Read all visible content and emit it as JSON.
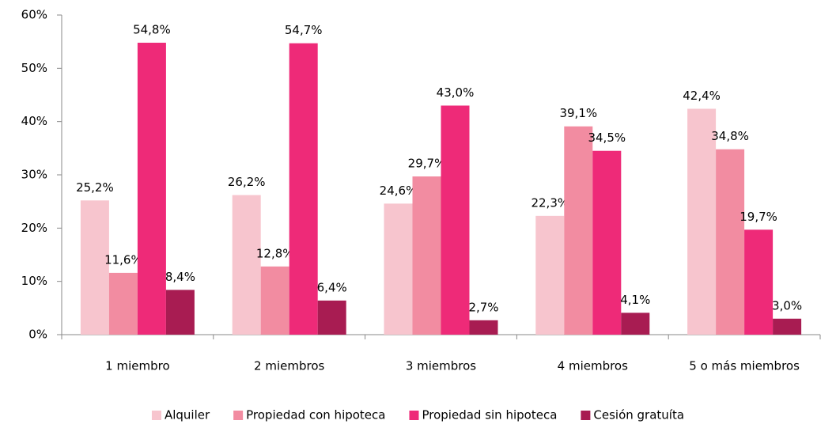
{
  "chart_data": {
    "type": "bar",
    "categories": [
      "1 miembro",
      "2 miembros",
      "3 miembros",
      "4 miembros",
      "5 o más miembros"
    ],
    "series": [
      {
        "name": "Alquiler",
        "color": "#f7c5ce",
        "values": [
          25.2,
          26.2,
          24.6,
          22.3,
          42.4
        ],
        "value_labels": [
          "25,2%",
          "26,2%",
          "24,6%",
          "22,3%",
          "42,4%"
        ]
      },
      {
        "name": "Propiedad con hipoteca",
        "color": "#f28ca1",
        "values": [
          11.6,
          12.8,
          29.7,
          39.1,
          34.8
        ],
        "value_labels": [
          "11,6%",
          "12,8%",
          "29,7%",
          "39,1%",
          "34,8%"
        ]
      },
      {
        "name": "Propiedad sin hipoteca",
        "color": "#ee2a78",
        "values": [
          54.8,
          54.7,
          43.0,
          34.5,
          19.7
        ],
        "value_labels": [
          "54,8%",
          "54,7%",
          "43,0%",
          "34,5%",
          "19,7%"
        ]
      },
      {
        "name": "Cesión gratuíta",
        "color": "#a81c52",
        "values": [
          8.4,
          6.4,
          2.7,
          4.1,
          3.0
        ],
        "value_labels": [
          "8,4%",
          "6,4%",
          "2,7%",
          "4,1%",
          "3,0%"
        ]
      }
    ],
    "ylim": [
      0,
      60
    ],
    "yticks": [
      {
        "value": 0,
        "label": "0%"
      },
      {
        "value": 10,
        "label": "10%"
      },
      {
        "value": 20,
        "label": "20%"
      },
      {
        "value": 30,
        "label": "30%"
      },
      {
        "value": 40,
        "label": "40%"
      },
      {
        "value": 50,
        "label": "50%"
      },
      {
        "value": 60,
        "label": "60%"
      }
    ],
    "grid": false,
    "legend": "bottom"
  }
}
